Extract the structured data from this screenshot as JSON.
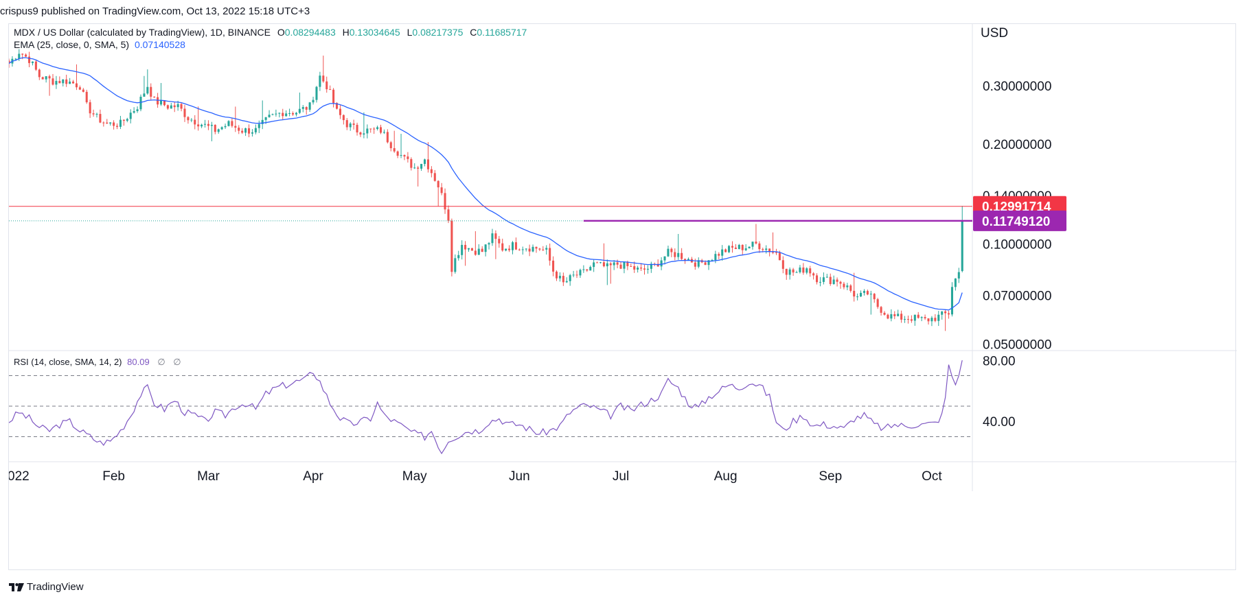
{
  "header": {
    "publish_line": "crispus9 published on TradingView.com, Oct 13, 2022 15:18 UTC+3"
  },
  "legend": {
    "symbol": "MDX / US Dollar (calculated by TradingView), 1D, BINANCE",
    "o_label": "O",
    "o_value": "0.08294483",
    "h_label": "H",
    "h_value": "0.13034645",
    "l_label": "L",
    "l_value": "0.08217375",
    "c_label": "C",
    "c_value": "0.11685717",
    "ema_label": "EMA (25, close, 0, SMA, 5)",
    "ema_value": "0.07140528",
    "rsi_label": "RSI (14, close, SMA, 14, 2)",
    "rsi_value": "80.09",
    "rsi_extra1": "∅",
    "rsi_extra2": "∅"
  },
  "footer": {
    "brand": "TradingView"
  },
  "colors": {
    "up": "#26a69a",
    "down": "#ef5350",
    "ema": "#2962ff",
    "rsi": "#7e57c2",
    "resistance": "#f23645",
    "level": "#9c27b0"
  },
  "chart_data": {
    "type": "candlestick",
    "price_axis": {
      "unit": "USD",
      "scale": "log",
      "ylim": [
        0.048,
        0.46
      ],
      "ticks": [
        {
          "value": 0.3,
          "label": "0.30000000"
        },
        {
          "value": 0.2,
          "label": "0.20000000"
        },
        {
          "value": 0.14,
          "label": "0.14000000"
        },
        {
          "value": 0.1,
          "label": "0.10000000"
        },
        {
          "value": 0.07,
          "label": "0.07000000"
        },
        {
          "value": 0.05,
          "label": "0.05000000"
        }
      ]
    },
    "price_labels": [
      {
        "value": 0.12991714,
        "label": "0.12991714",
        "color": "#f23645"
      },
      {
        "value": 0.1174912,
        "label": "0.11749120",
        "color": "#9c27b0"
      }
    ],
    "resistance_line": 0.12991714,
    "horizontal_level": {
      "value": 0.1174912,
      "from_day": 170
    },
    "time_axis": {
      "labels": [
        {
          "label": "022",
          "day": 0
        },
        {
          "label": "Feb",
          "day": 31
        },
        {
          "label": "Mar",
          "day": 59
        },
        {
          "label": "Apr",
          "day": 90
        },
        {
          "label": "May",
          "day": 120
        },
        {
          "label": "Jun",
          "day": 151
        },
        {
          "label": "Jul",
          "day": 181
        },
        {
          "label": "Aug",
          "day": 212
        },
        {
          "label": "Sep",
          "day": 243
        },
        {
          "label": "Oct",
          "day": 273
        }
      ],
      "last_day": 285
    },
    "price_anchors": [
      [
        0,
        0.35
      ],
      [
        3,
        0.38
      ],
      [
        6,
        0.36
      ],
      [
        9,
        0.32
      ],
      [
        13,
        0.31
      ],
      [
        17,
        0.31
      ],
      [
        21,
        0.3
      ],
      [
        23,
        0.26
      ],
      [
        26,
        0.24
      ],
      [
        29,
        0.23
      ],
      [
        33,
        0.23
      ],
      [
        38,
        0.26
      ],
      [
        41,
        0.3
      ],
      [
        43,
        0.27
      ],
      [
        47,
        0.26
      ],
      [
        50,
        0.26
      ],
      [
        53,
        0.24
      ],
      [
        57,
        0.23
      ],
      [
        61,
        0.22
      ],
      [
        65,
        0.23
      ],
      [
        69,
        0.22
      ],
      [
        73,
        0.22
      ],
      [
        77,
        0.24
      ],
      [
        81,
        0.25
      ],
      [
        85,
        0.25
      ],
      [
        89,
        0.26
      ],
      [
        92,
        0.32
      ],
      [
        94,
        0.3
      ],
      [
        97,
        0.25
      ],
      [
        100,
        0.23
      ],
      [
        103,
        0.22
      ],
      [
        107,
        0.22
      ],
      [
        110,
        0.22
      ],
      [
        113,
        0.2
      ],
      [
        117,
        0.18
      ],
      [
        120,
        0.17
      ],
      [
        123,
        0.18
      ],
      [
        127,
        0.15
      ],
      [
        130,
        0.12
      ],
      [
        131,
        0.085
      ],
      [
        134,
        0.1
      ],
      [
        137,
        0.096
      ],
      [
        140,
        0.095
      ],
      [
        143,
        0.105
      ],
      [
        146,
        0.097
      ],
      [
        149,
        0.099
      ],
      [
        153,
        0.098
      ],
      [
        157,
        0.097
      ],
      [
        159,
        0.095
      ],
      [
        161,
        0.083
      ],
      [
        164,
        0.076
      ],
      [
        167,
        0.08
      ],
      [
        170,
        0.082
      ],
      [
        173,
        0.087
      ],
      [
        177,
        0.085
      ],
      [
        180,
        0.087
      ],
      [
        184,
        0.085
      ],
      [
        187,
        0.083
      ],
      [
        191,
        0.086
      ],
      [
        195,
        0.094
      ],
      [
        198,
        0.093
      ],
      [
        201,
        0.09
      ],
      [
        204,
        0.087
      ],
      [
        207,
        0.09
      ],
      [
        211,
        0.095
      ],
      [
        214,
        0.097
      ],
      [
        218,
        0.098
      ],
      [
        221,
        0.1
      ],
      [
        224,
        0.097
      ],
      [
        227,
        0.094
      ],
      [
        230,
        0.083
      ],
      [
        233,
        0.082
      ],
      [
        236,
        0.085
      ],
      [
        239,
        0.079
      ],
      [
        242,
        0.078
      ],
      [
        245,
        0.078
      ],
      [
        248,
        0.074
      ],
      [
        251,
        0.069
      ],
      [
        254,
        0.071
      ],
      [
        257,
        0.065
      ],
      [
        260,
        0.061
      ],
      [
        263,
        0.06
      ],
      [
        267,
        0.06
      ],
      [
        271,
        0.059
      ],
      [
        274,
        0.06
      ],
      [
        276,
        0.061
      ],
      [
        278,
        0.062
      ],
      [
        279,
        0.075
      ],
      [
        281,
        0.082
      ],
      [
        282,
        0.116
      ]
    ],
    "ema": {
      "period": 25,
      "last_value": 0.07140528
    },
    "rsi": {
      "period": 14,
      "last_value": 80.09,
      "axis": {
        "ylim": [
          14,
          86
        ],
        "ticks": [
          {
            "value": 80,
            "label": "80.00"
          },
          {
            "value": 40,
            "label": "40.00"
          }
        ]
      },
      "bands": [
        30,
        50,
        70
      ],
      "anchors": [
        [
          0,
          40
        ],
        [
          3,
          46
        ],
        [
          6,
          42
        ],
        [
          9,
          36
        ],
        [
          12,
          34
        ],
        [
          15,
          38
        ],
        [
          18,
          40
        ],
        [
          21,
          34
        ],
        [
          24,
          30
        ],
        [
          27,
          26
        ],
        [
          30,
          27
        ],
        [
          33,
          34
        ],
        [
          36,
          44
        ],
        [
          39,
          58
        ],
        [
          41,
          62
        ],
        [
          43,
          52
        ],
        [
          46,
          48
        ],
        [
          49,
          54
        ],
        [
          52,
          46
        ],
        [
          55,
          44
        ],
        [
          58,
          40
        ],
        [
          61,
          46
        ],
        [
          64,
          44
        ],
        [
          67,
          50
        ],
        [
          70,
          52
        ],
        [
          73,
          48
        ],
        [
          76,
          58
        ],
        [
          79,
          62
        ],
        [
          82,
          64
        ],
        [
          85,
          66
        ],
        [
          88,
          68
        ],
        [
          90,
          73
        ],
        [
          92,
          66
        ],
        [
          95,
          52
        ],
        [
          98,
          42
        ],
        [
          101,
          38
        ],
        [
          104,
          40
        ],
        [
          107,
          42
        ],
        [
          109,
          52
        ],
        [
          111,
          44
        ],
        [
          114,
          40
        ],
        [
          117,
          36
        ],
        [
          120,
          32
        ],
        [
          123,
          30
        ],
        [
          125,
          34
        ],
        [
          128,
          20
        ],
        [
          130,
          28
        ],
        [
          133,
          31
        ],
        [
          136,
          34
        ],
        [
          139,
          34
        ],
        [
          142,
          40
        ],
        [
          145,
          42
        ],
        [
          148,
          38
        ],
        [
          151,
          38
        ],
        [
          154,
          35
        ],
        [
          157,
          32
        ],
        [
          160,
          34
        ],
        [
          163,
          37
        ],
        [
          166,
          46
        ],
        [
          169,
          50
        ],
        [
          172,
          50
        ],
        [
          175,
          47
        ],
        [
          178,
          44
        ],
        [
          181,
          50
        ],
        [
          184,
          47
        ],
        [
          187,
          51
        ],
        [
          190,
          54
        ],
        [
          193,
          58
        ],
        [
          195,
          67
        ],
        [
          198,
          62
        ],
        [
          201,
          52
        ],
        [
          204,
          49
        ],
        [
          207,
          56
        ],
        [
          210,
          60
        ],
        [
          213,
          64
        ],
        [
          216,
          62
        ],
        [
          219,
          66
        ],
        [
          222,
          64
        ],
        [
          225,
          56
        ],
        [
          227,
          40
        ],
        [
          229,
          34
        ],
        [
          232,
          40
        ],
        [
          235,
          44
        ],
        [
          238,
          37
        ],
        [
          241,
          38
        ],
        [
          244,
          37
        ],
        [
          247,
          35
        ],
        [
          250,
          42
        ],
        [
          253,
          44
        ],
        [
          256,
          38
        ],
        [
          259,
          35
        ],
        [
          262,
          38
        ],
        [
          265,
          37
        ],
        [
          268,
          38
        ],
        [
          271,
          38
        ],
        [
          274,
          39
        ],
        [
          276,
          44
        ],
        [
          277,
          56
        ],
        [
          278,
          76
        ],
        [
          280,
          64
        ],
        [
          282,
          80
        ]
      ]
    }
  }
}
